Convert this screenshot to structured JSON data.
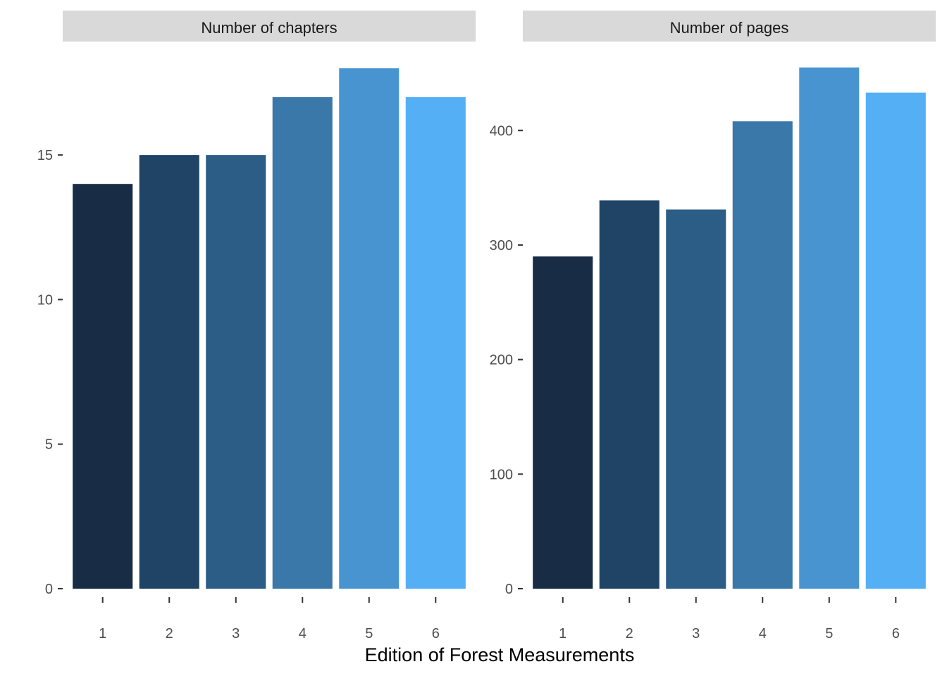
{
  "chart_data": {
    "type": "bar",
    "xlabel": "Edition of Forest Measurements",
    "grid": false,
    "legend": "none",
    "bar_colors": [
      "#182c45",
      "#1f4466",
      "#2c5d87",
      "#3a78aa",
      "#4894d1",
      "#54aff5"
    ],
    "panels": [
      {
        "strip_label": "Number of chapters",
        "categories": [
          "1",
          "2",
          "3",
          "4",
          "5",
          "6"
        ],
        "values": [
          14,
          15,
          15,
          17,
          18,
          17
        ],
        "ylim": [
          0,
          18.9
        ],
        "yticks": [
          0,
          5,
          10,
          15
        ],
        "ytick_labels": [
          "0",
          "5",
          "10",
          "15"
        ]
      },
      {
        "strip_label": "Number of pages",
        "categories": [
          "1",
          "2",
          "3",
          "4",
          "5",
          "6"
        ],
        "values": [
          290,
          339,
          331,
          408,
          455,
          433
        ],
        "ylim": [
          0,
          477
        ],
        "yticks": [
          0,
          100,
          200,
          300,
          400
        ],
        "ytick_labels": [
          "0",
          "100",
          "200",
          "300",
          "400"
        ]
      }
    ]
  }
}
